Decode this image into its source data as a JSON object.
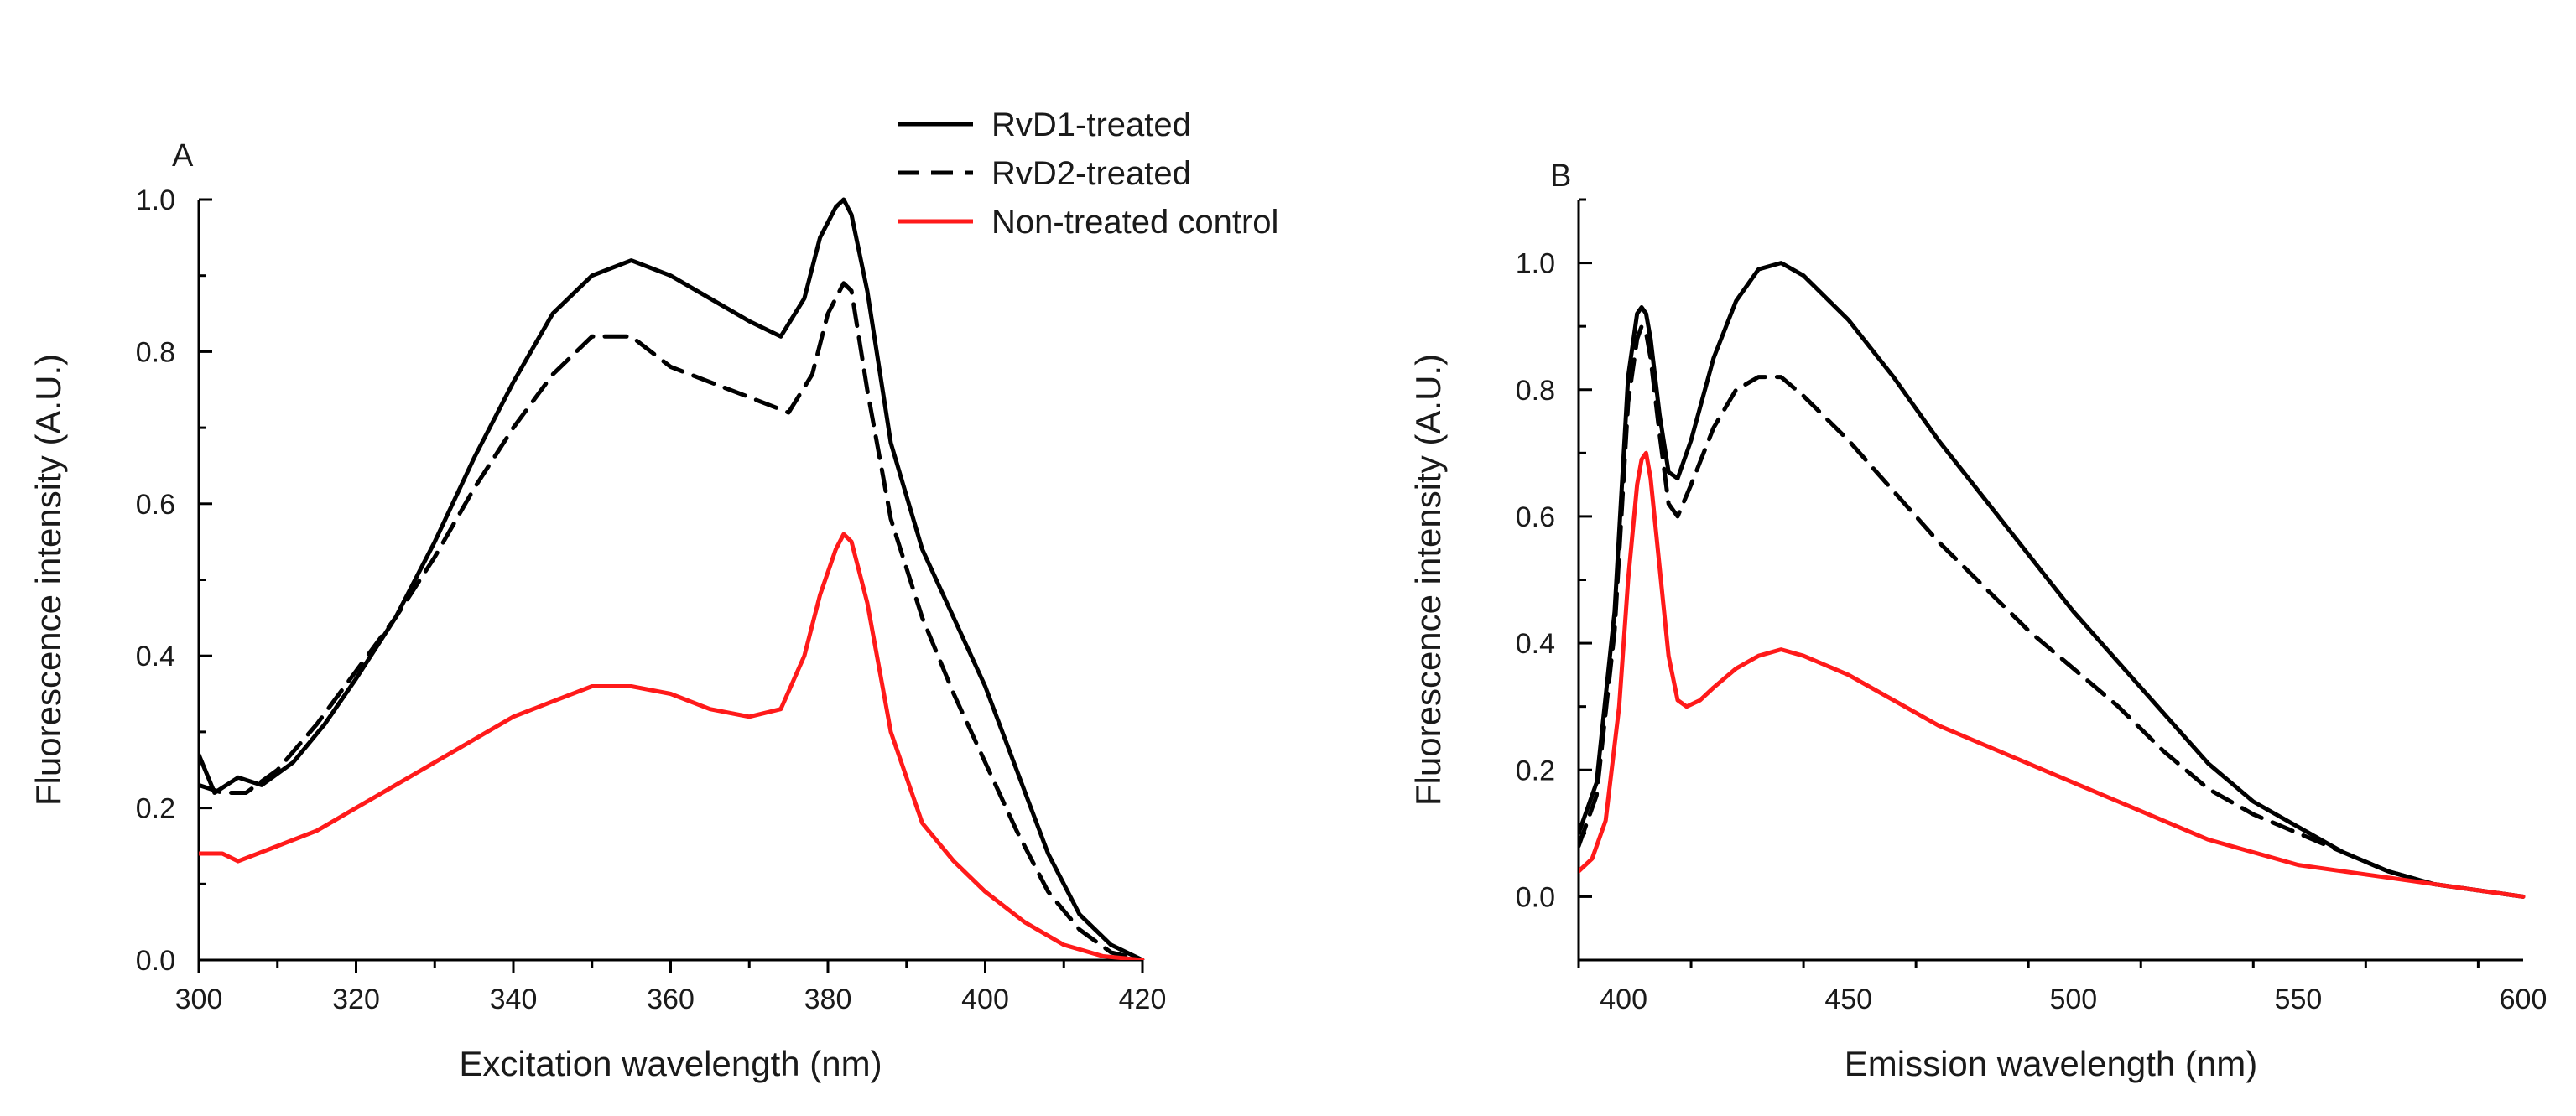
{
  "legend": [
    {
      "label": "RvD1-treated",
      "color": "#000000",
      "dash": "solid"
    },
    {
      "label": "RvD2-treated",
      "color": "#000000",
      "dash": "dashed"
    },
    {
      "label": "Non-treated control",
      "color": "#ff1a1a",
      "dash": "solid"
    }
  ],
  "chart_data": [
    {
      "type": "line",
      "panel_label": "A",
      "xlabel": "Excitation wavelength (nm)",
      "ylabel": "Fluorescence intensity (A.U.)",
      "xlim": [
        300,
        420
      ],
      "ylim": [
        0,
        1.0
      ],
      "xticks": [
        300,
        320,
        340,
        360,
        380,
        400,
        420
      ],
      "yticks": [
        0.0,
        0.2,
        0.4,
        0.6,
        0.8,
        1.0
      ],
      "ytick_labels": [
        "0.0",
        "0.2",
        "0.4",
        "0.6",
        "0.8",
        "1.0"
      ],
      "grid": false,
      "legend_position": "top-right",
      "series": [
        {
          "name": "RvD1-treated",
          "color": "#000000",
          "dash": "solid",
          "x": [
            300,
            302,
            305,
            308,
            312,
            316,
            320,
            325,
            330,
            335,
            340,
            345,
            350,
            355,
            360,
            365,
            370,
            374,
            377,
            379,
            381,
            382,
            383,
            385,
            388,
            392,
            396,
            400,
            404,
            408,
            412,
            416,
            420
          ],
          "y": [
            0.27,
            0.22,
            0.24,
            0.23,
            0.26,
            0.31,
            0.37,
            0.45,
            0.55,
            0.66,
            0.76,
            0.85,
            0.9,
            0.92,
            0.9,
            0.87,
            0.84,
            0.82,
            0.87,
            0.95,
            0.99,
            1.0,
            0.98,
            0.88,
            0.68,
            0.54,
            0.45,
            0.36,
            0.25,
            0.14,
            0.06,
            0.02,
            0.0
          ]
        },
        {
          "name": "RvD2-treated",
          "color": "#000000",
          "dash": "dashed",
          "x": [
            300,
            303,
            306,
            310,
            315,
            320,
            325,
            330,
            335,
            340,
            345,
            350,
            355,
            360,
            365,
            370,
            375,
            378,
            380,
            382,
            383,
            385,
            388,
            392,
            396,
            400,
            404,
            408,
            412,
            416,
            420
          ],
          "y": [
            0.23,
            0.22,
            0.22,
            0.25,
            0.31,
            0.38,
            0.45,
            0.53,
            0.62,
            0.7,
            0.77,
            0.82,
            0.82,
            0.78,
            0.76,
            0.74,
            0.72,
            0.77,
            0.85,
            0.89,
            0.88,
            0.75,
            0.58,
            0.45,
            0.35,
            0.26,
            0.17,
            0.09,
            0.04,
            0.01,
            0.0
          ]
        },
        {
          "name": "Non-treated control",
          "color": "#ff1a1a",
          "dash": "solid",
          "x": [
            300,
            303,
            305,
            310,
            315,
            320,
            325,
            330,
            335,
            340,
            345,
            350,
            355,
            360,
            365,
            370,
            374,
            377,
            379,
            381,
            382,
            383,
            385,
            388,
            392,
            396,
            400,
            405,
            410,
            415,
            420
          ],
          "y": [
            0.14,
            0.14,
            0.13,
            0.15,
            0.17,
            0.2,
            0.23,
            0.26,
            0.29,
            0.32,
            0.34,
            0.36,
            0.36,
            0.35,
            0.33,
            0.32,
            0.33,
            0.4,
            0.48,
            0.54,
            0.56,
            0.55,
            0.47,
            0.3,
            0.18,
            0.13,
            0.09,
            0.05,
            0.02,
            0.005,
            0.0
          ]
        }
      ]
    },
    {
      "type": "line",
      "panel_label": "B",
      "xlabel": "Emission wavelength (nm)",
      "ylabel": "Fluorescence intensity (A.U.)",
      "xlim": [
        390,
        600
      ],
      "ylim": [
        -0.1,
        1.1
      ],
      "xticks": [
        400,
        450,
        500,
        550,
        600
      ],
      "yticks": [
        0.0,
        0.2,
        0.4,
        0.6,
        0.8,
        1.0
      ],
      "ytick_labels": [
        "0.0",
        "0.2",
        "0.4",
        "0.6",
        "0.8",
        "1.0"
      ],
      "grid": false,
      "series": [
        {
          "name": "RvD1-treated",
          "color": "#000000",
          "dash": "solid",
          "x": [
            390,
            394,
            398,
            401,
            403,
            404,
            405,
            406,
            408,
            410,
            412,
            415,
            420,
            425,
            430,
            435,
            440,
            450,
            460,
            470,
            480,
            490,
            500,
            510,
            520,
            530,
            540,
            550,
            560,
            570,
            580,
            590,
            600
          ],
          "y": [
            0.1,
            0.18,
            0.45,
            0.82,
            0.92,
            0.93,
            0.92,
            0.88,
            0.76,
            0.67,
            0.66,
            0.72,
            0.85,
            0.94,
            0.99,
            1.0,
            0.98,
            0.91,
            0.82,
            0.72,
            0.63,
            0.54,
            0.45,
            0.37,
            0.29,
            0.21,
            0.15,
            0.11,
            0.07,
            0.04,
            0.02,
            0.01,
            0.0
          ]
        },
        {
          "name": "RvD2-treated",
          "color": "#000000",
          "dash": "dashed",
          "x": [
            390,
            394,
            398,
            401,
            403,
            404,
            405,
            406,
            408,
            410,
            412,
            415,
            420,
            425,
            430,
            435,
            440,
            450,
            460,
            470,
            480,
            490,
            500,
            510,
            520,
            530,
            540,
            550,
            560,
            570,
            580,
            590,
            600
          ],
          "y": [
            0.08,
            0.16,
            0.42,
            0.78,
            0.88,
            0.9,
            0.89,
            0.85,
            0.73,
            0.62,
            0.6,
            0.65,
            0.74,
            0.8,
            0.82,
            0.82,
            0.79,
            0.72,
            0.64,
            0.56,
            0.49,
            0.42,
            0.36,
            0.3,
            0.23,
            0.17,
            0.13,
            0.1,
            0.07,
            0.04,
            0.02,
            0.01,
            0.0
          ]
        },
        {
          "name": "Non-treated control",
          "color": "#ff1a1a",
          "dash": "solid",
          "x": [
            390,
            393,
            396,
            399,
            401,
            403,
            404,
            405,
            406,
            408,
            410,
            412,
            414,
            417,
            420,
            425,
            430,
            435,
            440,
            450,
            460,
            470,
            480,
            490,
            500,
            510,
            520,
            530,
            540,
            550,
            560,
            570,
            580,
            590,
            600
          ],
          "y": [
            0.04,
            0.06,
            0.12,
            0.3,
            0.5,
            0.65,
            0.69,
            0.7,
            0.66,
            0.52,
            0.38,
            0.31,
            0.3,
            0.31,
            0.33,
            0.36,
            0.38,
            0.39,
            0.38,
            0.35,
            0.31,
            0.27,
            0.24,
            0.21,
            0.18,
            0.15,
            0.12,
            0.09,
            0.07,
            0.05,
            0.04,
            0.03,
            0.02,
            0.01,
            0.0
          ]
        }
      ]
    }
  ]
}
